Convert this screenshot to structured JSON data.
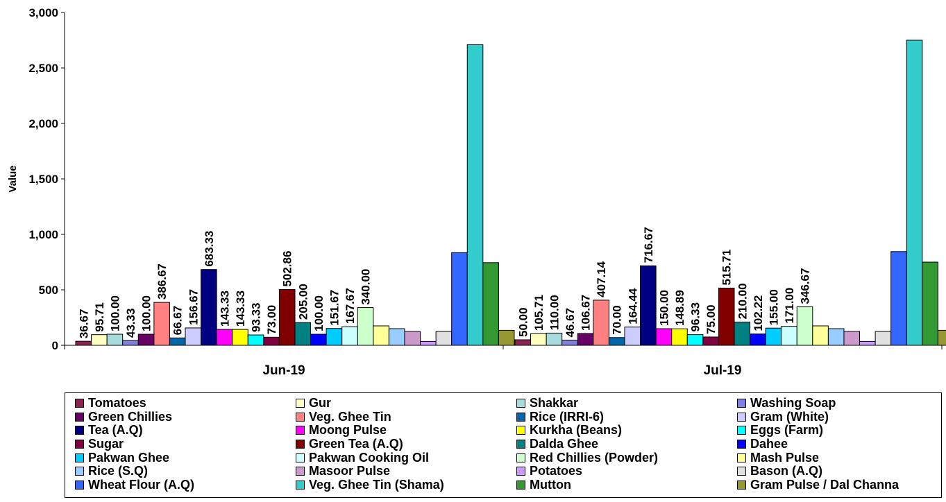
{
  "chart_data": {
    "type": "bar",
    "ylabel": "Value",
    "xlabel": "",
    "ylim": [
      0,
      3000
    ],
    "yticks": [
      0,
      500,
      1000,
      1500,
      2000,
      2500,
      3000
    ],
    "ytick_labels": [
      "0",
      "500",
      "1,000",
      "1,500",
      "2,000",
      "2,500",
      "3,000"
    ],
    "categories": [
      "Jun-19",
      "Jul-19"
    ],
    "grid": false,
    "legend_position": "bottom",
    "series": [
      {
        "name": "Tomatoes",
        "color": "#8B2252",
        "values": [
          36.67,
          50.0
        ],
        "labels": [
          "36.67",
          "50.00"
        ]
      },
      {
        "name": "Gur",
        "color": "#FFFFC0",
        "values": [
          95.71,
          105.71
        ],
        "labels": [
          "95.71",
          "105.71"
        ]
      },
      {
        "name": "Shakkar",
        "color": "#A8DCDC",
        "values": [
          100.0,
          110.0
        ],
        "labels": [
          "100.00",
          "110.00"
        ]
      },
      {
        "name": "Washing Soap",
        "color": "#8080E0",
        "values": [
          43.33,
          46.67
        ],
        "labels": [
          "43.33",
          "46.67"
        ]
      },
      {
        "name": "Green Chillies",
        "color": "#660066",
        "values": [
          100.0,
          106.67
        ],
        "labels": [
          "100.00",
          "106.67"
        ]
      },
      {
        "name": "Veg. Ghee Tin",
        "color": "#FF8080",
        "values": [
          386.67,
          407.14
        ],
        "labels": [
          "386.67",
          "407.14"
        ]
      },
      {
        "name": "Rice (IRRI-6)",
        "color": "#0066AA",
        "values": [
          66.67,
          70.0
        ],
        "labels": [
          "66.67",
          "70.00"
        ]
      },
      {
        "name": "Gram (White)",
        "color": "#CCCCFF",
        "values": [
          156.67,
          164.44
        ],
        "labels": [
          "156.67",
          "164.44"
        ]
      },
      {
        "name": "Tea (A.Q)",
        "color": "#000080",
        "values": [
          683.33,
          716.67
        ],
        "labels": [
          "683.33",
          "716.67"
        ]
      },
      {
        "name": "Moong Pulse",
        "color": "#FF00FF",
        "values": [
          143.33,
          150.0
        ],
        "labels": [
          "143.33",
          "150.00"
        ]
      },
      {
        "name": "Kurkha (Beans)",
        "color": "#FFFF00",
        "values": [
          143.33,
          148.89
        ],
        "labels": [
          "143.33",
          "148.89"
        ]
      },
      {
        "name": "Eggs (Farm)",
        "color": "#00FFFF",
        "values": [
          93.33,
          96.33
        ],
        "labels": [
          "93.33",
          "96.33"
        ]
      },
      {
        "name": "Sugar",
        "color": "#800040",
        "values": [
          73.0,
          75.0
        ],
        "labels": [
          "73.00",
          "75.00"
        ]
      },
      {
        "name": "Green Tea (A.Q)",
        "color": "#800000",
        "values": [
          502.86,
          515.71
        ],
        "labels": [
          "502.86",
          "515.71"
        ]
      },
      {
        "name": "Dalda Ghee",
        "color": "#008080",
        "values": [
          205.0,
          210.0
        ],
        "labels": [
          "205.00",
          "210.00"
        ]
      },
      {
        "name": "Dahee",
        "color": "#0000FF",
        "values": [
          100.0,
          102.22
        ],
        "labels": [
          "100.00",
          "102.22"
        ]
      },
      {
        "name": "Pakwan Ghee",
        "color": "#00CCFF",
        "values": [
          151.67,
          155.0
        ],
        "labels": [
          "151.67",
          "155.00"
        ]
      },
      {
        "name": "Pakwan Cooking Oil",
        "color": "#CCFFFF",
        "values": [
          167.67,
          171.0
        ],
        "labels": [
          "167.67",
          "171.00"
        ]
      },
      {
        "name": "Red Chillies (Powder)",
        "color": "#CCFFCC",
        "values": [
          340.0,
          346.67
        ],
        "labels": [
          "340.00",
          "346.67"
        ]
      },
      {
        "name": "Mash Pulse",
        "color": "#FFFF99",
        "values": [
          175,
          175
        ],
        "labels": [
          "",
          ""
        ]
      },
      {
        "name": "Rice (S.Q)",
        "color": "#99CCFF",
        "values": [
          150,
          150
        ],
        "labels": [
          "",
          ""
        ]
      },
      {
        "name": "Masoor Pulse",
        "color": "#CC99CC",
        "values": [
          125,
          125
        ],
        "labels": [
          "",
          ""
        ]
      },
      {
        "name": "Potatoes",
        "color": "#CC99FF",
        "values": [
          35,
          35
        ],
        "labels": [
          "",
          ""
        ]
      },
      {
        "name": "Bason (A.Q)",
        "color": "#E0E0E0",
        "values": [
          125,
          125
        ],
        "labels": [
          "",
          ""
        ]
      },
      {
        "name": "Wheat Flour (A.Q)",
        "color": "#3366FF",
        "values": [
          835,
          845
        ],
        "labels": [
          "",
          ""
        ]
      },
      {
        "name": "Veg. Ghee Tin (Shama)",
        "color": "#33CCCC",
        "values": [
          2710,
          2750
        ],
        "labels": [
          "",
          ""
        ]
      },
      {
        "name": "Mutton",
        "color": "#339933",
        "values": [
          745,
          750
        ],
        "labels": [
          "",
          ""
        ]
      },
      {
        "name": "Gram Pulse / Dal Channa",
        "color": "#999933",
        "values": [
          135,
          135
        ],
        "labels": [
          "",
          ""
        ]
      }
    ]
  }
}
